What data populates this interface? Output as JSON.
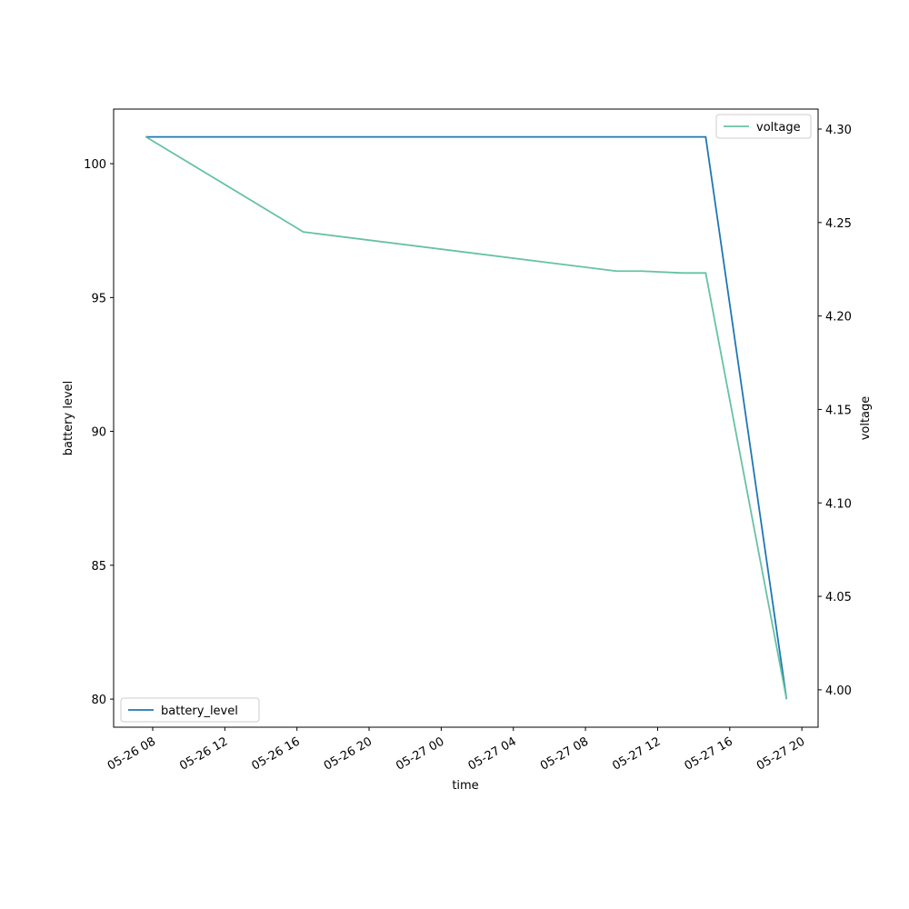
{
  "chart_data": {
    "type": "line",
    "xlabel": "time",
    "ylabel": "battery level",
    "y2label": "voltage",
    "xlim": [
      "05-26 05:50",
      "05-27 20:54"
    ],
    "xticks": [
      "05-26 08",
      "05-26 12",
      "05-26 16",
      "05-26 20",
      "05-27 00",
      "05-27 04",
      "05-27 08",
      "05-27 12",
      "05-27 16",
      "05-27 20"
    ],
    "ylim": [
      78.95,
      102.04
    ],
    "yticks": [
      80,
      85,
      90,
      95,
      100
    ],
    "y2lim": [
      3.98,
      4.3107
    ],
    "y2ticks": [
      {
        "value": 4.0,
        "label": "4.00"
      },
      {
        "value": 4.05,
        "label": "4.05"
      },
      {
        "value": 4.1,
        "label": "4.10"
      },
      {
        "value": 4.15,
        "label": "4.15"
      },
      {
        "value": 4.2,
        "label": "4.20"
      },
      {
        "value": 4.25,
        "label": "4.25"
      },
      {
        "value": 4.3,
        "label": "4.30"
      }
    ],
    "series": [
      {
        "name": "battery_level",
        "color": "#1f77b4",
        "legend": "lower left",
        "x": [
          "05-26 07:36",
          "05-27 14:40",
          "05-27 19:09"
        ],
        "values": [
          101,
          101,
          80
        ]
      },
      {
        "name": "voltage",
        "color": "#66c2a5",
        "axis": "y2",
        "legend": "upper right",
        "x": [
          "05-26 07:36",
          "05-26 16:21",
          "05-27 09:43",
          "05-27 11:07",
          "05-27 13:22",
          "05-27 14:40",
          "05-27 19:09"
        ],
        "values": [
          4.296,
          4.245,
          4.224,
          4.224,
          4.223,
          4.223,
          3.995
        ]
      }
    ]
  }
}
